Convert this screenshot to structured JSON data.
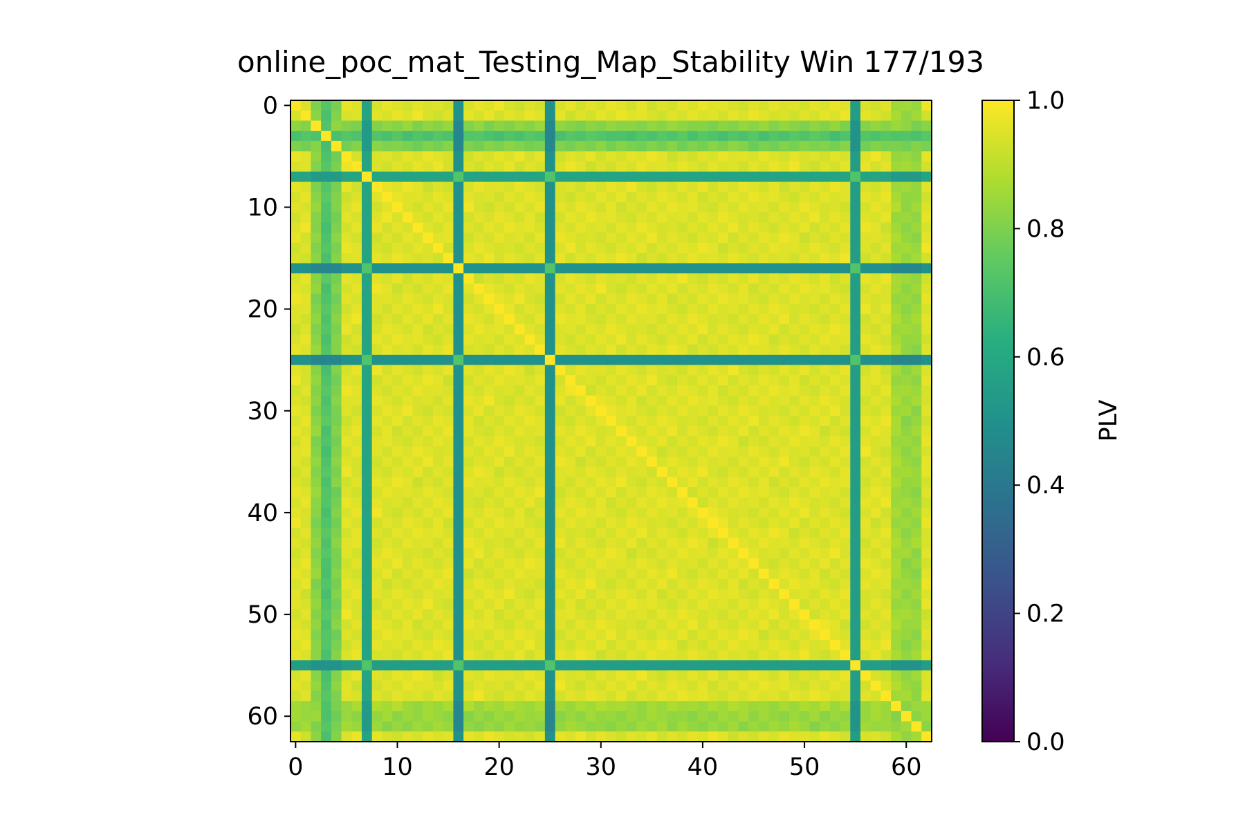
{
  "chart_data": {
    "type": "heatmap",
    "title": "online_poc_mat_Testing_Map_Stability Win 177/193",
    "matrix_size": 63,
    "x_ticks": [
      0,
      10,
      20,
      30,
      40,
      50,
      60
    ],
    "y_ticks": [
      0,
      10,
      20,
      30,
      40,
      50,
      60
    ],
    "xlim": [
      -0.5,
      62.5
    ],
    "ylim": [
      62.5,
      -0.5
    ],
    "colormap": "viridis",
    "colorbar": {
      "label": "PLV",
      "range": [
        0.0,
        1.0
      ],
      "ticks": [
        "0.0",
        "0.2",
        "0.4",
        "0.6",
        "0.8",
        "1.0"
      ]
    },
    "low_connectivity_channels": [
      {
        "channel": 7,
        "plv_with_others": 0.58
      },
      {
        "channel": 16,
        "plv_with_others": 0.5
      },
      {
        "channel": 25,
        "plv_with_others": 0.5
      },
      {
        "channel": 55,
        "plv_with_others": 0.55
      }
    ],
    "moderate_channels": [
      {
        "channel": 2,
        "plv": 0.82
      },
      {
        "channel": 3,
        "plv": 0.72
      },
      {
        "channel": 4,
        "plv": 0.8
      },
      {
        "channel": 59,
        "plv": 0.86
      },
      {
        "channel": 60,
        "plv": 0.84
      },
      {
        "channel": 61,
        "plv": 0.84
      }
    ],
    "background_plv": 0.95,
    "diagonal_plv": 1.0
  }
}
